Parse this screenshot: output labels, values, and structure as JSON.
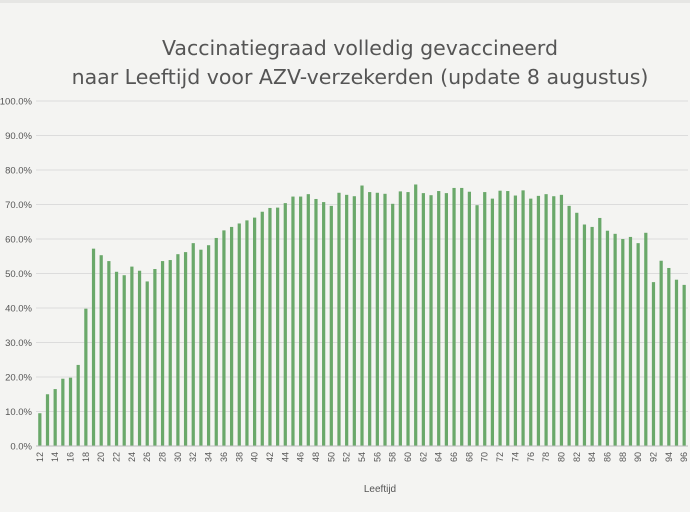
{
  "chart_data": {
    "type": "bar",
    "title_line1": "Vaccinatiegraad volledig gevaccineerd",
    "title_line2": "naar Leeftijd voor AZV-verzekerden (update 8 augustus)",
    "xlabel": "Leeftijd",
    "ylabel": "",
    "ylim": [
      0,
      100
    ],
    "y_ticks": [
      "0.0%",
      "10.0%",
      "20.0%",
      "30.0%",
      "40.0%",
      "50.0%",
      "60.0%",
      "70.0%",
      "80.0%",
      "90.0%",
      "100.0%"
    ],
    "x_tick_labels": [
      12,
      14,
      16,
      18,
      20,
      22,
      24,
      26,
      28,
      30,
      32,
      34,
      36,
      38,
      40,
      42,
      44,
      46,
      48,
      50,
      52,
      54,
      56,
      58,
      60,
      62,
      64,
      66,
      68,
      70,
      72,
      74,
      76,
      78,
      80,
      82,
      84,
      86,
      88,
      90,
      92,
      94,
      96
    ],
    "categories": [
      12,
      13,
      14,
      15,
      16,
      17,
      18,
      19,
      20,
      21,
      22,
      23,
      24,
      25,
      26,
      27,
      28,
      29,
      30,
      31,
      32,
      33,
      34,
      35,
      36,
      37,
      38,
      39,
      40,
      41,
      42,
      43,
      44,
      45,
      46,
      47,
      48,
      49,
      50,
      51,
      52,
      53,
      54,
      55,
      56,
      57,
      58,
      59,
      60,
      61,
      62,
      63,
      64,
      65,
      66,
      67,
      68,
      69,
      70,
      71,
      72,
      73,
      74,
      75,
      76,
      77,
      78,
      79,
      80,
      81,
      82,
      83,
      84,
      85,
      86,
      87,
      88,
      89,
      90,
      91,
      92,
      93,
      94,
      95,
      96
    ],
    "values": [
      9.5,
      15,
      16.5,
      19.5,
      19.8,
      23.5,
      39.8,
      57.2,
      55.3,
      53.6,
      50.5,
      49.5,
      52,
      50.8,
      47.7,
      51.3,
      53.6,
      53.9,
      55.6,
      56.2,
      58.8,
      56.9,
      58.2,
      60.3,
      62.5,
      63.5,
      64.5,
      65.4,
      66.2,
      67.9,
      69,
      69.1,
      70.4,
      72.3,
      72.3,
      73,
      71.6,
      70.7,
      69.6,
      73.4,
      72.8,
      72.4,
      75.5,
      73.6,
      73.4,
      73.1,
      70.2,
      73.8,
      73.6,
      75.8,
      73.3,
      72.7,
      73.9,
      73.3,
      74.8,
      74.8,
      73.7,
      69.8,
      73.6,
      71.7,
      74,
      73.9,
      72.6,
      74.1,
      71.7,
      72.5,
      73,
      72.4,
      72.8,
      69.6,
      67.6,
      64.2,
      63.5,
      66.1,
      62.4,
      61.5,
      60,
      60.6,
      58.8,
      61.8,
      47.5,
      53.7,
      51.6,
      48.2,
      46.7
    ],
    "series": [
      {
        "values_ref": "values",
        "color": "#6aa86a"
      }
    ],
    "grid": true,
    "legend": "none",
    "colors": {
      "bar": "#6aa86a",
      "grid": "#dcdcdc",
      "axis": "#bdbdbd",
      "text": "#555555"
    }
  }
}
